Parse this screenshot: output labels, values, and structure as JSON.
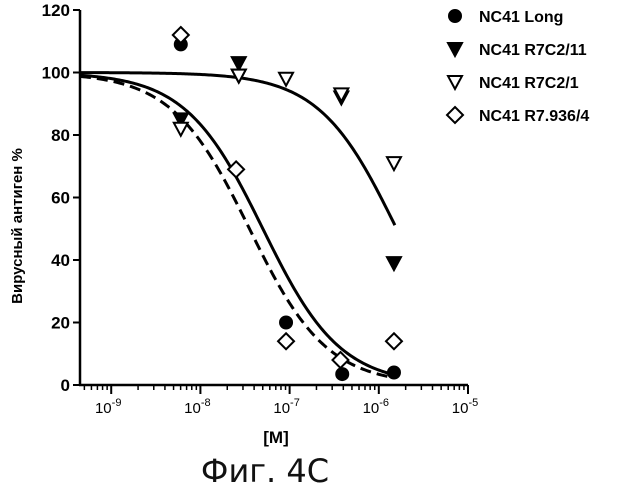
{
  "figure_caption": "Фиг. 4С",
  "chart_data": {
    "type": "scatter",
    "title": "",
    "xlabel": "[M]",
    "ylabel": "Вирусный антиген %",
    "xscale": "log",
    "xlim_log10": [
      -9.35,
      -5.0
    ],
    "ylim": [
      0,
      120
    ],
    "y_ticks": [
      "0",
      "20",
      "40",
      "60",
      "80",
      "100",
      "120"
    ],
    "y_tick_values": [
      0,
      20,
      40,
      60,
      80,
      100,
      120
    ],
    "x_ticks": [
      {
        "log": -9,
        "base": "10",
        "exp": "-9"
      },
      {
        "log": -8,
        "base": "10",
        "exp": "-8"
      },
      {
        "log": -7,
        "base": "10",
        "exp": "-7"
      },
      {
        "log": -6,
        "base": "10",
        "exp": "-6"
      },
      {
        "log": -5,
        "base": "10",
        "exp": "-5"
      }
    ],
    "legend_position": "top-right",
    "series": [
      {
        "name": "NC41 Long",
        "marker": "circle-filled",
        "x_log10": [
          -8.22,
          -7.04,
          -6.41,
          -5.83
        ],
        "y": [
          109,
          20,
          3.5,
          4
        ],
        "curve": {
          "style": "solid",
          "top": 100,
          "bottom": 0,
          "log_ec50": -7.3,
          "hill": 1.0
        }
      },
      {
        "name": "NC41 R7C2/11",
        "marker": "triangle-down-filled",
        "x_log10": [
          -8.22,
          -7.57,
          -7.57,
          -6.42,
          -5.83
        ],
        "y": [
          85,
          103,
          99,
          92,
          39
        ],
        "curve": {
          "style": "solid",
          "top": 100,
          "bottom": 0,
          "log_ec50": -5.8,
          "hill": 1.0
        }
      },
      {
        "name": "NC41 R7C2/1",
        "marker": "triangle-down-open",
        "x_log10": [
          -8.22,
          -7.57,
          -7.04,
          -6.42,
          -5.83
        ],
        "y": [
          82,
          99,
          98,
          93,
          71
        ],
        "curve": null
      },
      {
        "name": "NC41 R7.936/4",
        "marker": "diamond-open",
        "x_log10": [
          -8.22,
          -7.6,
          -7.04,
          -6.43,
          -5.83
        ],
        "y": [
          112,
          69,
          14,
          8,
          14
        ],
        "curve": {
          "style": "dashed",
          "top": 100,
          "bottom": 0,
          "log_ec50": -7.45,
          "hill": 1.0
        }
      }
    ]
  }
}
